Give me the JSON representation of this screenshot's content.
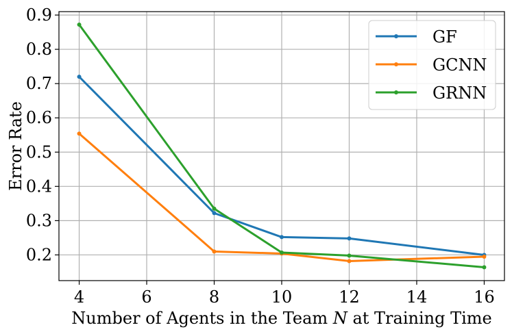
{
  "chart_data": {
    "type": "line",
    "title": "",
    "xlabel": "Number of Agents in the Team N at Training Time",
    "xlabel_parts": {
      "before": "Number of Agents in the Team ",
      "var": "N",
      "after": " at Training Time"
    },
    "ylabel": "Error Rate",
    "x": [
      4,
      8,
      10,
      12,
      16
    ],
    "xlim": [
      3.4,
      16.6
    ],
    "ylim": [
      0.125,
      0.91
    ],
    "xticks": [
      4,
      6,
      8,
      10,
      12,
      14,
      16
    ],
    "xtick_labels": [
      "4",
      "6",
      "8",
      "10",
      "12",
      "14",
      "16"
    ],
    "yticks": [
      0.2,
      0.3,
      0.4,
      0.5,
      0.6,
      0.7,
      0.8,
      0.9
    ],
    "ytick_labels": [
      "0.2",
      "0.3",
      "0.4",
      "0.5",
      "0.6",
      "0.7",
      "0.8",
      "0.9"
    ],
    "grid": true,
    "legend_position": "top-right",
    "series": [
      {
        "name": "GF",
        "color": "#1f77b4",
        "values": [
          0.72,
          0.322,
          0.252,
          0.248,
          0.2
        ]
      },
      {
        "name": "GCNN",
        "color": "#ff7f0e",
        "values": [
          0.554,
          0.21,
          0.204,
          0.182,
          0.195
        ]
      },
      {
        "name": "GRNN",
        "color": "#2ca02c",
        "values": [
          0.872,
          0.335,
          0.207,
          0.198,
          0.164
        ]
      }
    ]
  }
}
